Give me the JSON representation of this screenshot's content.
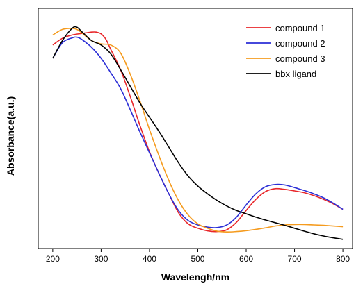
{
  "chart_data": {
    "type": "line",
    "title": "",
    "xlabel": "Wavelengh/nm",
    "ylabel": "Absorbance(a.u.)",
    "xlim": [
      170,
      820
    ],
    "ylim": [
      0,
      1
    ],
    "xticks": [
      200,
      300,
      400,
      500,
      600,
      700,
      800
    ],
    "yticks_shown": false,
    "grid": false,
    "legend_position": "top-right",
    "series": [
      {
        "name": "compound 1",
        "color": "#e8262a",
        "points": [
          [
            200,
            0.86
          ],
          [
            220,
            0.89
          ],
          [
            240,
            0.905
          ],
          [
            260,
            0.912
          ],
          [
            280,
            0.918
          ],
          [
            290,
            0.918
          ],
          [
            300,
            0.91
          ],
          [
            310,
            0.885
          ],
          [
            320,
            0.84
          ],
          [
            340,
            0.75
          ],
          [
            360,
            0.63
          ],
          [
            380,
            0.5
          ],
          [
            400,
            0.38
          ],
          [
            420,
            0.28
          ],
          [
            440,
            0.19
          ],
          [
            460,
            0.105
          ],
          [
            480,
            0.055
          ],
          [
            500,
            0.035
          ],
          [
            520,
            0.023
          ],
          [
            540,
            0.02
          ],
          [
            560,
            0.028
          ],
          [
            580,
            0.062
          ],
          [
            600,
            0.115
          ],
          [
            620,
            0.165
          ],
          [
            640,
            0.2
          ],
          [
            660,
            0.213
          ],
          [
            680,
            0.21
          ],
          [
            700,
            0.203
          ],
          [
            720,
            0.195
          ],
          [
            740,
            0.182
          ],
          [
            760,
            0.165
          ],
          [
            780,
            0.145
          ],
          [
            800,
            0.12
          ]
        ]
      },
      {
        "name": "compound 2",
        "color": "#2b2ed6",
        "points": [
          [
            200,
            0.8
          ],
          [
            220,
            0.87
          ],
          [
            240,
            0.892
          ],
          [
            250,
            0.895
          ],
          [
            260,
            0.885
          ],
          [
            280,
            0.85
          ],
          [
            300,
            0.8
          ],
          [
            320,
            0.735
          ],
          [
            340,
            0.665
          ],
          [
            360,
            0.57
          ],
          [
            380,
            0.47
          ],
          [
            400,
            0.375
          ],
          [
            420,
            0.28
          ],
          [
            440,
            0.19
          ],
          [
            460,
            0.115
          ],
          [
            480,
            0.07
          ],
          [
            500,
            0.05
          ],
          [
            520,
            0.04
          ],
          [
            540,
            0.038
          ],
          [
            560,
            0.05
          ],
          [
            580,
            0.085
          ],
          [
            600,
            0.14
          ],
          [
            620,
            0.19
          ],
          [
            640,
            0.222
          ],
          [
            660,
            0.232
          ],
          [
            680,
            0.23
          ],
          [
            700,
            0.218
          ],
          [
            720,
            0.205
          ],
          [
            740,
            0.19
          ],
          [
            760,
            0.172
          ],
          [
            780,
            0.148
          ],
          [
            800,
            0.12
          ]
        ]
      },
      {
        "name": "compound 3",
        "color": "#f59b1e",
        "points": [
          [
            200,
            0.905
          ],
          [
            220,
            0.93
          ],
          [
            240,
            0.935
          ],
          [
            250,
            0.93
          ],
          [
            260,
            0.915
          ],
          [
            280,
            0.88
          ],
          [
            300,
            0.865
          ],
          [
            320,
            0.86
          ],
          [
            340,
            0.825
          ],
          [
            360,
            0.73
          ],
          [
            380,
            0.61
          ],
          [
            400,
            0.48
          ],
          [
            420,
            0.36
          ],
          [
            440,
            0.25
          ],
          [
            460,
            0.16
          ],
          [
            480,
            0.095
          ],
          [
            500,
            0.055
          ],
          [
            520,
            0.035
          ],
          [
            540,
            0.022
          ],
          [
            560,
            0.018
          ],
          [
            580,
            0.02
          ],
          [
            600,
            0.024
          ],
          [
            620,
            0.03
          ],
          [
            640,
            0.037
          ],
          [
            660,
            0.045
          ],
          [
            680,
            0.05
          ],
          [
            700,
            0.052
          ],
          [
            720,
            0.052
          ],
          [
            740,
            0.05
          ],
          [
            760,
            0.048
          ],
          [
            780,
            0.045
          ],
          [
            800,
            0.042
          ]
        ]
      },
      {
        "name": "bbx ligand",
        "color": "#000000",
        "points": [
          [
            200,
            0.8
          ],
          [
            220,
            0.88
          ],
          [
            240,
            0.935
          ],
          [
            250,
            0.94
          ],
          [
            260,
            0.92
          ],
          [
            280,
            0.88
          ],
          [
            300,
            0.86
          ],
          [
            320,
            0.82
          ],
          [
            340,
            0.75
          ],
          [
            360,
            0.675
          ],
          [
            380,
            0.6
          ],
          [
            400,
            0.535
          ],
          [
            420,
            0.47
          ],
          [
            440,
            0.4
          ],
          [
            460,
            0.33
          ],
          [
            480,
            0.27
          ],
          [
            500,
            0.225
          ],
          [
            520,
            0.19
          ],
          [
            540,
            0.16
          ],
          [
            560,
            0.135
          ],
          [
            580,
            0.115
          ],
          [
            600,
            0.1
          ],
          [
            620,
            0.085
          ],
          [
            640,
            0.072
          ],
          [
            660,
            0.06
          ],
          [
            680,
            0.048
          ],
          [
            700,
            0.035
          ],
          [
            720,
            0.022
          ],
          [
            740,
            0.01
          ],
          [
            760,
            0.0
          ],
          [
            780,
            -0.008
          ],
          [
            800,
            -0.015
          ]
        ]
      }
    ]
  }
}
